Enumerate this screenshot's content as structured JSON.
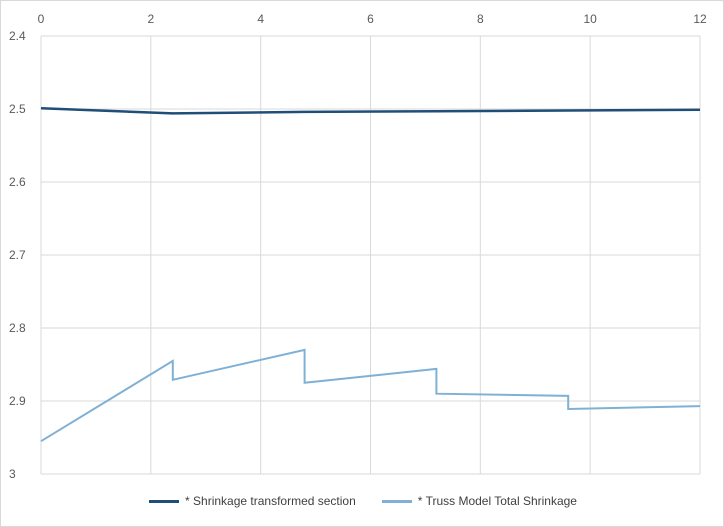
{
  "chart_data": {
    "type": "line",
    "title": "",
    "xlabel": "",
    "ylabel": "",
    "xlim": [
      0,
      12
    ],
    "ylim": [
      2.4,
      3.0
    ],
    "y_inverted": true,
    "x_axis_position": "top",
    "x_ticks": [
      0,
      2,
      4,
      6,
      8,
      10,
      12
    ],
    "y_ticks": [
      2.4,
      2.5,
      2.6,
      2.7,
      2.8,
      2.9,
      3
    ],
    "x_tick_labels": [
      "0",
      "2",
      "4",
      "6",
      "8",
      "10",
      "12"
    ],
    "y_tick_labels": [
      "2.4",
      "2.5",
      "2.6",
      "2.7",
      "2.8",
      "2.9",
      "3"
    ],
    "grid": "vertical and horizontal major gridlines",
    "legend_position": "bottom",
    "series": [
      {
        "name": "* Shrinkage transformed section",
        "color": "#1f4e79",
        "x": [
          0,
          2.4,
          4.8,
          7.2,
          9.6,
          12
        ],
        "y": [
          2.499,
          2.506,
          2.504,
          2.503,
          2.502,
          2.501
        ]
      },
      {
        "name": "* Truss Model Total Shrinkage",
        "color": "#7fb0d6",
        "x": [
          0,
          2.4,
          2.4,
          4.8,
          4.8,
          7.2,
          7.2,
          9.6,
          9.6,
          12
        ],
        "y": [
          2.955,
          2.845,
          2.871,
          2.83,
          2.875,
          2.856,
          2.89,
          2.893,
          2.911,
          2.907
        ]
      }
    ]
  }
}
